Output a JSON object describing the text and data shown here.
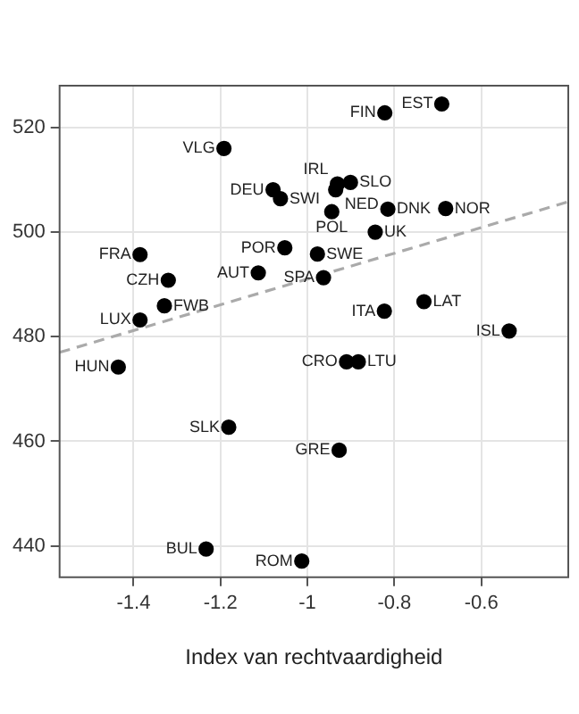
{
  "chart_data": {
    "type": "scatter",
    "xlabel": "Index van rechtvaardigheid",
    "xlim": [
      -1.57,
      -0.4
    ],
    "ylim": [
      434,
      528
    ],
    "xticks": [
      -1.4,
      -1.2,
      -1.0,
      -0.8,
      -0.6
    ],
    "yticks": [
      440,
      460,
      480,
      500,
      520
    ],
    "grid": true,
    "legend": false,
    "marker": "circle",
    "series": [
      {
        "color": "#000000",
        "x": [
          -0.691,
          -0.822,
          -1.192,
          -1.079,
          -1.062,
          -0.931,
          -0.901,
          -0.935,
          -0.944,
          -0.815,
          -0.682,
          -0.844,
          -1.385,
          -1.052,
          -0.977,
          -1.32,
          -1.113,
          -0.963,
          -1.329,
          -1.385,
          -0.823,
          -0.732,
          -0.536,
          -1.435,
          -0.91,
          -0.883,
          -1.181,
          -0.927,
          -1.233,
          -1.013
        ],
        "values": [
          524.5,
          522.8,
          516,
          508.1,
          506.4,
          509.2,
          509.5,
          508.1,
          503.9,
          504.4,
          504.5,
          500,
          495.7,
          497,
          495.8,
          490.8,
          492.2,
          491.3,
          485.9,
          483.2,
          484.9,
          486.7,
          481.1,
          474.2,
          475.2,
          475.2,
          462.7,
          458.3,
          439.4,
          437.1
        ],
        "value_labels": [
          "EST",
          "FIN",
          "VLG",
          "DEU",
          "SWI",
          "IRL",
          "SLO",
          "NED",
          "POL",
          "DNK",
          "NOR",
          "UK",
          "FRA",
          "POR",
          "SWE",
          "CZH",
          "AUT",
          "SPA",
          "FWB",
          "LUX",
          "ITA",
          "LAT",
          "ISL",
          "HUN",
          "CRO",
          "LTU",
          "SLK",
          "GRE",
          "BUL",
          "ROM"
        ]
      },
      {
        "type": "line",
        "color": "#aaaaaa",
        "line_style": "dashed",
        "marker": "none",
        "x": [
          -1.57,
          -0.4
        ],
        "values": [
          477,
          505.8
        ]
      }
    ]
  }
}
